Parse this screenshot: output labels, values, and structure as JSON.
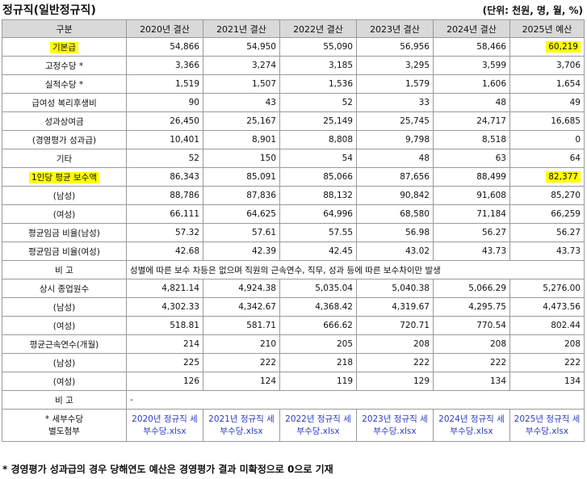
{
  "title": "정규직(일반정규직)",
  "unit": "(단위: 천원, 명, 월, %)",
  "columns": [
    "구분",
    "2020년 결산",
    "2021년 결산",
    "2022년 결산",
    "2023년 결산",
    "2024년 결산",
    "2025년 예산"
  ],
  "rows": [
    {
      "label": "기본급",
      "values": [
        "54,866",
        "54,950",
        "55,090",
        "56,956",
        "58,466",
        "60,219"
      ]
    },
    {
      "label": "고정수당 *",
      "values": [
        "3,366",
        "3,274",
        "3,185",
        "3,295",
        "3,599",
        "3,706"
      ]
    },
    {
      "label": "실적수당 *",
      "values": [
        "1,519",
        "1,507",
        "1,536",
        "1,579",
        "1,606",
        "1,654"
      ]
    },
    {
      "label": "급여성 복리후생비",
      "values": [
        "90",
        "43",
        "52",
        "33",
        "48",
        "49"
      ]
    },
    {
      "label": "성과상여금",
      "values": [
        "26,450",
        "25,167",
        "25,149",
        "25,745",
        "24,717",
        "16,685"
      ]
    },
    {
      "label": "(경영평가 성과급)",
      "values": [
        "10,401",
        "8,901",
        "8,808",
        "9,798",
        "8,518",
        "0"
      ]
    },
    {
      "label": "기타",
      "values": [
        "52",
        "150",
        "54",
        "48",
        "63",
        "64"
      ]
    },
    {
      "label": "1인당 평균 보수액",
      "values": [
        "86,343",
        "85,091",
        "85,066",
        "87,656",
        "88,499",
        "82,377"
      ]
    },
    {
      "label": "(남성)",
      "values": [
        "88,786",
        "87,836",
        "88,132",
        "90,842",
        "91,608",
        "85,270"
      ]
    },
    {
      "label": "(여성)",
      "values": [
        "66,111",
        "64,625",
        "64,996",
        "68,580",
        "71,184",
        "66,259"
      ]
    },
    {
      "label": "평균임금 비율(남성)",
      "values": [
        "57.32",
        "57.61",
        "57.55",
        "56.98",
        "56.27",
        "56.27"
      ]
    },
    {
      "label": "평균임금 비율(여성)",
      "values": [
        "42.68",
        "42.39",
        "42.45",
        "43.02",
        "43.73",
        "43.73"
      ]
    },
    {
      "label": "비 고",
      "note": "성별에 따른 보수 차등은 없으며 직원의 근속연수, 직무, 성과 등에 따른 보수차이만 발생"
    },
    {
      "label": "상시 종업원수",
      "values": [
        "4,821.14",
        "4,924.38",
        "5,035.04",
        "5,040.38",
        "5,066.29",
        "5,276.00"
      ]
    },
    {
      "label": "(남성)",
      "values": [
        "4,302.33",
        "4,342.67",
        "4,368.42",
        "4,319.67",
        "4,295.75",
        "4,473.56"
      ]
    },
    {
      "label": "(여성)",
      "values": [
        "518.81",
        "581.71",
        "666.62",
        "720.71",
        "770.54",
        "802.44"
      ]
    },
    {
      "label": "평균근속연수(개월)",
      "values": [
        "214",
        "210",
        "205",
        "208",
        "208",
        "208"
      ]
    },
    {
      "label": "(남성)",
      "values": [
        "225",
        "222",
        "218",
        "222",
        "222",
        "222"
      ]
    },
    {
      "label": "(여성)",
      "values": [
        "126",
        "124",
        "119",
        "129",
        "134",
        "134"
      ]
    },
    {
      "label": "비 고",
      "note": "-"
    }
  ],
  "attachments": {
    "label_line1": "* 세부수당",
    "label_line2": "별도첨부",
    "files": [
      "2020년 정규직 세부수당.xlsx",
      "2021년 정규직 세부수당.xlsx",
      "2022년 정규직 세부수당.xlsx",
      "2023년 정규직 세부수당.xlsx",
      "2024년 정규직 세부수당.xlsx",
      "2025년 정규직 세부수당.xlsx"
    ]
  },
  "footnote": "* 경영평가 성과급의 경우 당해연도 예산은 경영평가 결과 미확정으로 0으로 기재",
  "colors": {
    "highlight": "#ffff00",
    "header_bg": "#d9d9d9",
    "link": "#2c3cc2",
    "border": "#9a9a9a"
  }
}
